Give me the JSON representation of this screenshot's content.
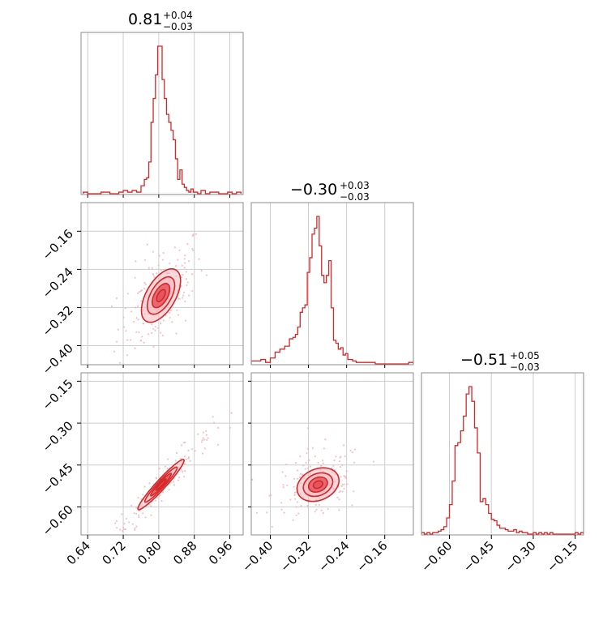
{
  "colors": {
    "line": "#d62728",
    "fill_inner": "#e3505a",
    "fill_outer": "#f2b8bd",
    "scatter": "#f0b4bb",
    "grid": "#cccccc",
    "frame": "#8c8c8c"
  },
  "chart_data": {
    "type": "corner-plot",
    "params": [
      {
        "median": "0.81",
        "plus": "+0.04",
        "minus": "−0.03",
        "range": [
          0.625,
          0.99
        ],
        "ticks": [
          0.64,
          0.72,
          0.8,
          0.88,
          0.96
        ],
        "tick_labels": [
          "0.64",
          "0.72",
          "0.80",
          "0.88",
          "0.96"
        ],
        "hist_centers": [
          0.635,
          0.645,
          0.655,
          0.665,
          0.675,
          0.685,
          0.695,
          0.705,
          0.715,
          0.725,
          0.735,
          0.745,
          0.755,
          0.765,
          0.77,
          0.775,
          0.78,
          0.785,
          0.79,
          0.795,
          0.8,
          0.805,
          0.81,
          0.815,
          0.82,
          0.825,
          0.83,
          0.835,
          0.84,
          0.845,
          0.85,
          0.855,
          0.86,
          0.865,
          0.87,
          0.875,
          0.88,
          0.885,
          0.89,
          0.9,
          0.91,
          0.92,
          0.93,
          0.94,
          0.95,
          0.96,
          0.97,
          0.98
        ],
        "hist_counts": [
          1,
          0,
          0,
          0,
          1,
          1,
          0,
          0,
          1,
          2,
          1,
          2,
          1,
          5,
          9,
          10,
          20,
          45,
          60,
          75,
          93,
          93,
          72,
          60,
          50,
          45,
          40,
          34,
          22,
          9,
          15,
          6,
          4,
          2,
          1,
          3,
          1,
          1,
          0,
          2,
          0,
          1,
          1,
          0,
          0,
          1,
          0,
          1
        ]
      },
      {
        "median": "−0.30",
        "plus": "+0.03",
        "minus": "−0.03",
        "range": [
          -0.44,
          -0.1
        ],
        "ticks": [
          -0.4,
          -0.32,
          -0.24,
          -0.16
        ],
        "tick_labels": [
          "−0.40",
          "−0.32",
          "−0.24",
          "−0.16"
        ],
        "hist_centers": [
          -0.435,
          -0.425,
          -0.415,
          -0.405,
          -0.395,
          -0.385,
          -0.375,
          -0.365,
          -0.355,
          -0.35,
          -0.345,
          -0.34,
          -0.335,
          -0.33,
          -0.325,
          -0.32,
          -0.315,
          -0.31,
          -0.305,
          -0.3,
          -0.295,
          -0.29,
          -0.285,
          -0.28,
          -0.275,
          -0.27,
          -0.265,
          -0.26,
          -0.255,
          -0.25,
          -0.245,
          -0.24,
          -0.235,
          -0.23,
          -0.225,
          -0.215,
          -0.205,
          -0.195,
          -0.185,
          -0.175,
          -0.165,
          -0.155,
          -0.145,
          -0.135,
          -0.125,
          -0.115,
          -0.105
        ],
        "hist_counts": [
          2,
          2,
          3,
          1,
          4,
          8,
          10,
          12,
          17,
          18,
          20,
          25,
          35,
          38,
          40,
          62,
          72,
          88,
          92,
          100,
          80,
          60,
          55,
          60,
          70,
          38,
          16,
          14,
          10,
          11,
          6,
          7,
          3,
          3,
          2,
          1,
          1,
          1,
          1,
          0,
          0,
          0,
          0,
          0,
          0,
          0,
          1
        ]
      },
      {
        "median": "−0.51",
        "plus": "+0.05",
        "minus": "−0.03",
        "range": [
          -0.7,
          -0.12
        ],
        "ticks": [
          -0.6,
          -0.45,
          -0.3,
          -0.15
        ],
        "tick_labels": [
          "−0.60",
          "−0.45",
          "−0.30",
          "−0.15"
        ],
        "hist_centers": [
          -0.695,
          -0.685,
          -0.675,
          -0.665,
          -0.655,
          -0.645,
          -0.635,
          -0.625,
          -0.615,
          -0.605,
          -0.595,
          -0.585,
          -0.575,
          -0.565,
          -0.555,
          -0.545,
          -0.535,
          -0.525,
          -0.515,
          -0.505,
          -0.495,
          -0.485,
          -0.475,
          -0.465,
          -0.455,
          -0.445,
          -0.435,
          -0.425,
          -0.415,
          -0.405,
          -0.395,
          -0.385,
          -0.375,
          -0.365,
          -0.355,
          -0.345,
          -0.335,
          -0.325,
          -0.315,
          -0.305,
          -0.295,
          -0.285,
          -0.275,
          -0.265,
          -0.255,
          -0.245,
          -0.235,
          -0.225,
          -0.215,
          -0.205,
          -0.195,
          -0.185,
          -0.175,
          -0.165,
          -0.155,
          -0.145,
          -0.135,
          -0.125
        ],
        "hist_counts": [
          1,
          0,
          1,
          0,
          1,
          1,
          2,
          3,
          5,
          11,
          20,
          36,
          60,
          62,
          70,
          80,
          95,
          100,
          90,
          72,
          55,
          22,
          24,
          20,
          14,
          10,
          9,
          6,
          4,
          4,
          3,
          2,
          2,
          3,
          1,
          2,
          1,
          1,
          0,
          0,
          1,
          0,
          1,
          0,
          1,
          0,
          1,
          0,
          0,
          0,
          0,
          0,
          0,
          0,
          0,
          1,
          0,
          1
        ]
      }
    ],
    "pairs": [
      {
        "x": 0,
        "y": 1,
        "center": [
          0.805,
          -0.295
        ],
        "sd": [
          0.022,
          0.028
        ],
        "rho": 0.55
      },
      {
        "x": 0,
        "y": 2,
        "center": [
          0.805,
          -0.52
        ],
        "sd": [
          0.026,
          0.045
        ],
        "rho": 0.96
      },
      {
        "x": 1,
        "y": 2,
        "center": [
          -0.3,
          -0.52
        ],
        "sd": [
          0.022,
          0.03
        ],
        "rho": 0.25
      }
    ]
  }
}
